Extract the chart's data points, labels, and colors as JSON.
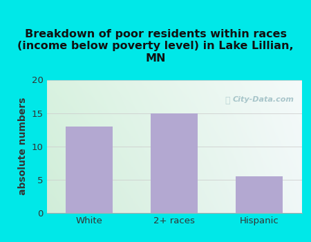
{
  "title": "Breakdown of poor residents within races\n(income below poverty level) in Lake Lillian,\nMN",
  "categories": [
    "White",
    "2+ races",
    "Hispanic"
  ],
  "values": [
    13,
    15,
    5.5
  ],
  "bar_color": "#b3a8d1",
  "ylabel": "absolute numbers",
  "ylim": [
    0,
    20
  ],
  "yticks": [
    0,
    5,
    10,
    15,
    20
  ],
  "background_outer": "#00e8e8",
  "grid_color": "#cccccc",
  "title_fontsize": 11.5,
  "ylabel_fontsize": 10,
  "tick_fontsize": 9.5,
  "watermark": "City-Data.com",
  "grad_topleft": [
    0.85,
    0.95,
    0.88
  ],
  "grad_topright": [
    0.96,
    0.98,
    0.98
  ],
  "grad_botleft": [
    0.82,
    0.93,
    0.85
  ],
  "grad_botright": [
    0.94,
    0.97,
    0.97
  ]
}
